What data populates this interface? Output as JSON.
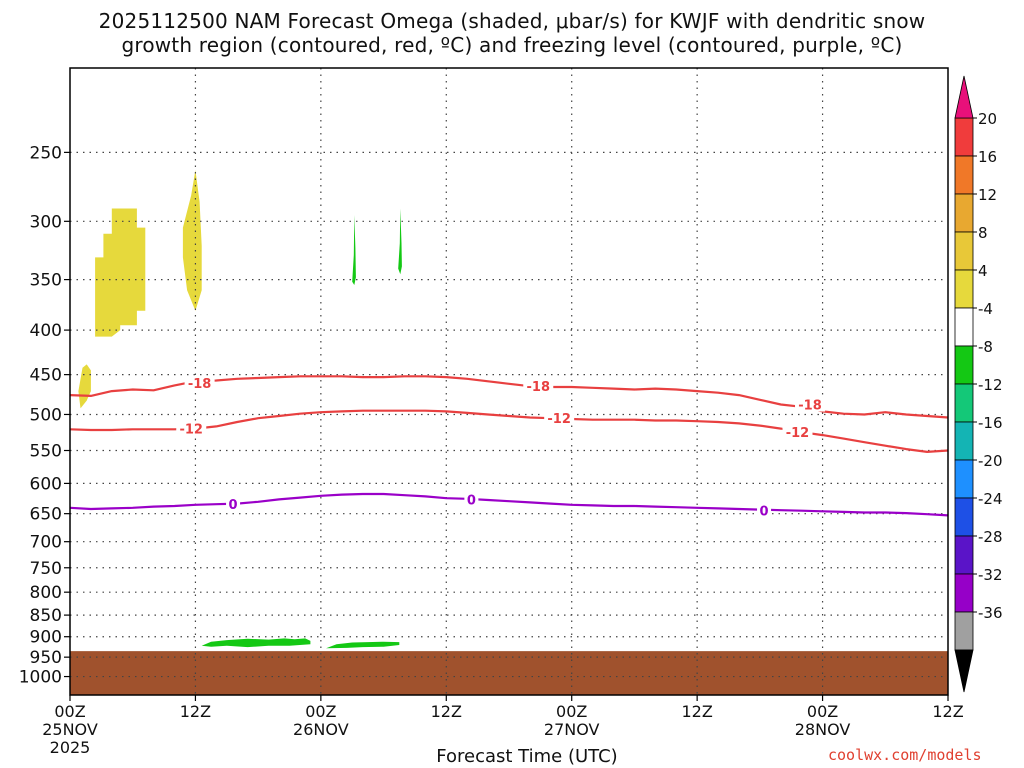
{
  "title_line1": "2025112500 NAM Forecast Omega (shaded, μbar/s) for KWJF with dendritic snow",
  "title_line2": "growth region (contoured, red, ºC) and freezing level (contoured, purple, ºC)",
  "watermark": "coolwx.com/models",
  "chart_data": {
    "type": "heatmap",
    "xlabel": "Forecast Time (UTC)",
    "x_range_hours": [
      0,
      84
    ],
    "y_scale": "log-pressure",
    "y_range_hPa": [
      1050,
      200
    ],
    "grid": true,
    "x_ticks": [
      {
        "h": 0,
        "label": "00Z",
        "sub": "25NOV",
        "sub2": "2025"
      },
      {
        "h": 12,
        "label": "12Z",
        "sub": "",
        "sub2": ""
      },
      {
        "h": 24,
        "label": "00Z",
        "sub": "26NOV",
        "sub2": ""
      },
      {
        "h": 36,
        "label": "12Z",
        "sub": "",
        "sub2": ""
      },
      {
        "h": 48,
        "label": "00Z",
        "sub": "27NOV",
        "sub2": ""
      },
      {
        "h": 60,
        "label": "12Z",
        "sub": "",
        "sub2": ""
      },
      {
        "h": 72,
        "label": "00Z",
        "sub": "28NOV",
        "sub2": ""
      },
      {
        "h": 84,
        "label": "12Z",
        "sub": "",
        "sub2": ""
      }
    ],
    "y_ticks": [
      250,
      300,
      350,
      400,
      450,
      500,
      550,
      600,
      650,
      700,
      750,
      800,
      850,
      900,
      950,
      1000
    ],
    "ground_pressure_hPa": 935,
    "ground_color": "#a0522d",
    "colorbar": {
      "labels": [
        "20",
        "16",
        "12",
        "8",
        "4",
        "-4",
        "-8",
        "-12",
        "-16",
        "-20",
        "-24",
        "-28",
        "-32",
        "-36"
      ],
      "top_color": "#e8107a",
      "bottom_color": "#000000",
      "colors": [
        "#f03c3c",
        "#f07828",
        "#e8a830",
        "#e8c838",
        "#e6d93c",
        "#ffffff",
        "#14c814",
        "#14c878",
        "#14b4b4",
        "#1e90ff",
        "#1e50e6",
        "#5a14c8",
        "#9600c8",
        "#a0a0a0"
      ]
    },
    "shaded_regions": [
      {
        "name": "omega 4-8",
        "color": "#e6d93c",
        "polygon": [
          [
            2.4,
            330
          ],
          [
            3.2,
            330
          ],
          [
            3.2,
            310
          ],
          [
            4.0,
            310
          ],
          [
            4.0,
            290
          ],
          [
            6.4,
            290
          ],
          [
            6.4,
            305
          ],
          [
            7.2,
            305
          ],
          [
            7.2,
            380
          ],
          [
            6.4,
            380
          ],
          [
            6.4,
            395
          ],
          [
            4.8,
            395
          ],
          [
            4.8,
            400
          ],
          [
            4.0,
            407
          ],
          [
            2.4,
            407
          ]
        ]
      },
      {
        "name": "omega 4-8",
        "color": "#e6d93c",
        "polygon": [
          [
            10.8,
            305
          ],
          [
            11.6,
            280
          ],
          [
            12.0,
            262
          ],
          [
            12.4,
            285
          ],
          [
            12.6,
            320
          ],
          [
            12.6,
            360
          ],
          [
            12.0,
            380
          ],
          [
            11.2,
            360
          ],
          [
            10.8,
            330
          ]
        ]
      },
      {
        "name": "omega 4-8",
        "color": "#e6d93c",
        "polygon": [
          [
            0.8,
            470
          ],
          [
            1.2,
            442
          ],
          [
            1.6,
            438
          ],
          [
            2.0,
            445
          ],
          [
            2.0,
            470
          ],
          [
            1.6,
            482
          ],
          [
            1.0,
            492
          ]
        ]
      },
      {
        "name": "omega -4 to -8",
        "color": "#14c814",
        "polygon": [
          [
            27.0,
            352
          ],
          [
            27.15,
            328
          ],
          [
            27.2,
            295
          ],
          [
            27.3,
            322
          ],
          [
            27.35,
            348
          ],
          [
            27.2,
            355
          ]
        ]
      },
      {
        "name": "omega -4 to -8",
        "color": "#14c814",
        "polygon": [
          [
            31.4,
            340
          ],
          [
            31.55,
            318
          ],
          [
            31.6,
            290
          ],
          [
            31.72,
            318
          ],
          [
            31.75,
            338
          ],
          [
            31.6,
            345
          ]
        ]
      },
      {
        "name": "omega -4 to -8",
        "color": "#14c814",
        "polygon": [
          [
            12.6,
            922
          ],
          [
            13.5,
            912
          ],
          [
            15.0,
            908
          ],
          [
            17.0,
            905
          ],
          [
            19.0,
            907
          ],
          [
            20.5,
            904
          ],
          [
            21.5,
            906
          ],
          [
            22.5,
            904
          ],
          [
            23.0,
            910
          ],
          [
            23.0,
            918
          ],
          [
            21.0,
            922
          ],
          [
            19.0,
            922
          ],
          [
            17.0,
            925
          ],
          [
            15.0,
            922
          ],
          [
            13.5,
            924
          ]
        ]
      },
      {
        "name": "omega -4 to -8",
        "color": "#14c814",
        "polygon": [
          [
            24.5,
            928
          ],
          [
            25.5,
            918
          ],
          [
            27.0,
            914
          ],
          [
            28.5,
            913
          ],
          [
            30.0,
            912
          ],
          [
            31.5,
            913
          ],
          [
            31.5,
            920
          ],
          [
            30.0,
            924
          ],
          [
            28.0,
            925
          ],
          [
            26.5,
            927
          ]
        ]
      }
    ],
    "series": [
      {
        "name": "-18",
        "color": "#e84040",
        "x": [
          0,
          2,
          4,
          6,
          8,
          10,
          12,
          14,
          16,
          18,
          20,
          22,
          24,
          26,
          28,
          30,
          32,
          34,
          36,
          38,
          40,
          42,
          44,
          46,
          48,
          50,
          52,
          54,
          56,
          58,
          60,
          62,
          64,
          66,
          68,
          70,
          72,
          74,
          76,
          78,
          80,
          82,
          84
        ],
        "y": [
          475,
          476,
          470,
          468,
          469,
          463,
          458,
          457,
          455,
          454,
          453,
          452,
          452,
          452,
          453,
          453,
          452,
          452,
          453,
          455,
          458,
          461,
          464,
          465,
          465,
          466,
          467,
          468,
          467,
          468,
          470,
          472,
          475,
          481,
          487,
          490,
          496,
          499,
          500,
          497,
          500,
          502,
          504
        ]
      },
      {
        "name": "-12",
        "color": "#e84040",
        "x": [
          0,
          2,
          4,
          6,
          8,
          10,
          12,
          14,
          16,
          18,
          20,
          22,
          24,
          26,
          28,
          30,
          32,
          34,
          36,
          38,
          40,
          42,
          44,
          46,
          48,
          50,
          52,
          54,
          56,
          58,
          60,
          62,
          64,
          66,
          68,
          70,
          72,
          74,
          76,
          78,
          80,
          82,
          84
        ],
        "y": [
          520,
          521,
          521,
          520,
          520,
          520,
          519,
          516,
          510,
          505,
          502,
          499,
          497,
          496,
          495,
          495,
          495,
          495,
          496,
          498,
          500,
          502,
          504,
          505,
          506,
          507,
          507,
          507,
          508,
          508,
          509,
          510,
          512,
          515,
          519,
          524,
          528,
          533,
          538,
          543,
          548,
          552,
          550
        ]
      },
      {
        "name": "0",
        "color": "#9a00c8",
        "x": [
          0,
          2,
          4,
          6,
          8,
          10,
          12,
          14,
          16,
          18,
          20,
          22,
          24,
          26,
          28,
          30,
          32,
          34,
          36,
          38,
          40,
          42,
          44,
          46,
          48,
          50,
          52,
          54,
          56,
          58,
          60,
          62,
          64,
          66,
          68,
          70,
          72,
          74,
          76,
          78,
          80,
          82,
          84
        ],
        "y": [
          640,
          642,
          641,
          640,
          638,
          637,
          635,
          634,
          633,
          630,
          626,
          623,
          620,
          618,
          617,
          617,
          619,
          621,
          624,
          625,
          627,
          629,
          631,
          633,
          635,
          636,
          637,
          637,
          638,
          639,
          640,
          641,
          642,
          643,
          644,
          645,
          646,
          647,
          648,
          648,
          649,
          651,
          653
        ]
      }
    ],
    "contour_labels": [
      {
        "text": "-18",
        "x": 12.4,
        "y": 460,
        "color": "#e84040"
      },
      {
        "text": "-18",
        "x": 44.8,
        "y": 464,
        "color": "#e84040"
      },
      {
        "text": "-18",
        "x": 70.8,
        "y": 487,
        "color": "#e84040"
      },
      {
        "text": "-12",
        "x": 11.6,
        "y": 519,
        "color": "#e84040"
      },
      {
        "text": "-12",
        "x": 46.8,
        "y": 505,
        "color": "#e84040"
      },
      {
        "text": "-12",
        "x": 69.6,
        "y": 524,
        "color": "#e84040"
      },
      {
        "text": "0",
        "x": 15.6,
        "y": 634,
        "color": "#9a00c8"
      },
      {
        "text": "0",
        "x": 38.4,
        "y": 626,
        "color": "#9a00c8"
      },
      {
        "text": "0",
        "x": 66.4,
        "y": 645,
        "color": "#9a00c8"
      }
    ]
  }
}
